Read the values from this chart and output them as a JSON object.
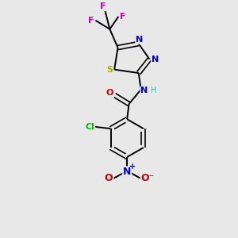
{
  "background_color": "#e8e8e8",
  "bond_color": "#000000",
  "figsize": [
    3.0,
    3.0
  ],
  "dpi": 100,
  "atom_colors": {
    "C": "#000000",
    "N": "#0000cc",
    "O": "#cc0000",
    "S": "#aaaa00",
    "Cl": "#00bb00",
    "F": "#cc00cc",
    "H": "#00cccc"
  },
  "xlim": [
    0,
    10
  ],
  "ylim": [
    0,
    10
  ]
}
